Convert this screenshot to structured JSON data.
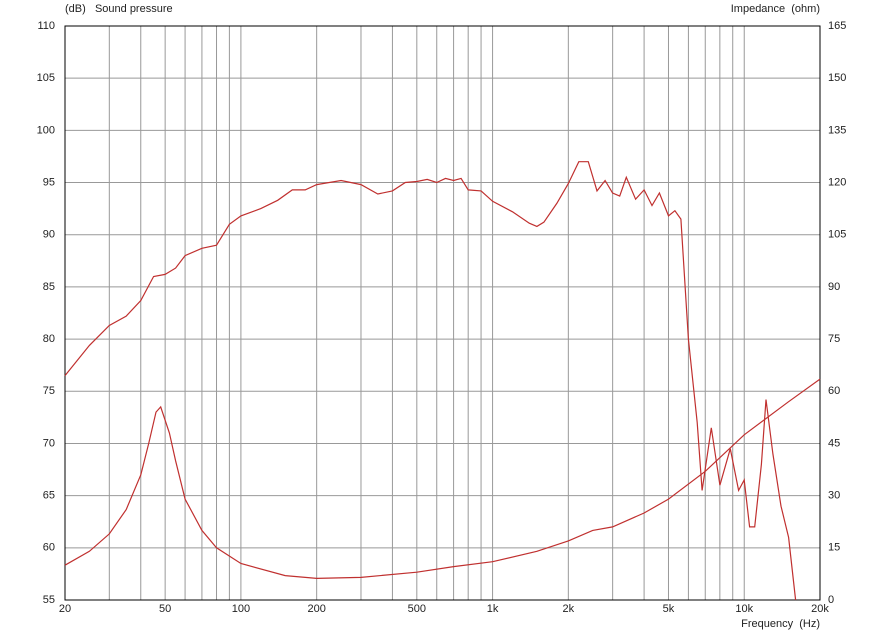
{
  "chart_data": {
    "type": "line",
    "ylabel": "(dB)   Sound pressure",
    "y2label": "Impedance  (ohm)",
    "xlabel": "Frequency  (Hz)",
    "xscale": "log",
    "xlim": [
      20,
      20000
    ],
    "xticks": [
      20,
      50,
      100,
      200,
      500,
      {
        "value": 1000,
        "label": "1k"
      },
      {
        "value": 2000,
        "label": "2k"
      },
      {
        "value": 5000,
        "label": "5k"
      },
      {
        "value": 10000,
        "label": "10k"
      },
      {
        "value": 20000,
        "label": "20k"
      }
    ],
    "xgrid_minor": [
      30,
      40,
      60,
      70,
      80,
      90,
      300,
      400,
      600,
      700,
      800,
      900,
      3000,
      4000,
      6000,
      7000,
      8000,
      9000
    ],
    "ylim": [
      55,
      110
    ],
    "yticks": [
      55,
      60,
      65,
      70,
      75,
      80,
      85,
      90,
      95,
      100,
      105,
      110
    ],
    "y2lim": [
      0,
      165
    ],
    "y2ticks": [
      0,
      15,
      30,
      45,
      60,
      75,
      90,
      105,
      120,
      135,
      150,
      165
    ],
    "grid": true,
    "series": [
      {
        "color": "#c0302f",
        "x": [
          20,
          25,
          30,
          35,
          40,
          45,
          50,
          55,
          60,
          70,
          80,
          90,
          100,
          120,
          140,
          160,
          180,
          200,
          250,
          300,
          350,
          400,
          450,
          500,
          550,
          600,
          650,
          700,
          750,
          800,
          900,
          1000,
          1200,
          1400,
          1500,
          1600,
          1800,
          2000,
          2200,
          2400,
          2600,
          2800,
          3000,
          3200,
          3400,
          3700,
          4000,
          4300,
          4600,
          5000,
          5300,
          5600,
          6000,
          6500,
          6800,
          7400,
          8000,
          8800,
          9500,
          10000,
          10500,
          11000,
          11700,
          12200,
          13000,
          14000,
          15000,
          16000
        ],
        "values": [
          76.5,
          79.4,
          81.3,
          82.2,
          83.7,
          86,
          86.2,
          86.8,
          88,
          88.7,
          89,
          91,
          91.8,
          92.5,
          93.3,
          94.3,
          94.3,
          94.8,
          95.2,
          94.8,
          93.9,
          94.2,
          95,
          95.1,
          95.3,
          95,
          95.4,
          95.2,
          95.4,
          94.3,
          94.2,
          93.2,
          92.2,
          91.1,
          90.8,
          91.2,
          93,
          94.9,
          97,
          97,
          94.2,
          95.2,
          94,
          93.7,
          95.5,
          93.4,
          94.3,
          92.8,
          94,
          91.8,
          92.3,
          91.5,
          80,
          72,
          65.5,
          71.5,
          66,
          69.5,
          65.5,
          66.5,
          62,
          62,
          68,
          74.2,
          69,
          64,
          61,
          55
        ]
      },
      {
        "color": "#c0302f",
        "axis": "y2",
        "x": [
          20,
          25,
          30,
          35,
          40,
          43,
          46,
          48,
          52,
          55,
          60,
          70,
          80,
          100,
          150,
          200,
          300,
          500,
          700,
          1000,
          1500,
          2000,
          2500,
          3000,
          4000,
          5000,
          7000,
          10000,
          15000,
          20000
        ],
        "values": [
          10,
          14,
          19,
          26,
          36,
          45,
          54,
          55.5,
          48,
          40,
          29,
          20,
          15,
          10.5,
          7,
          6.2,
          6.5,
          8,
          9.6,
          11,
          14,
          17,
          20,
          21,
          25,
          29,
          37,
          47.5,
          57,
          63.5
        ]
      }
    ]
  }
}
